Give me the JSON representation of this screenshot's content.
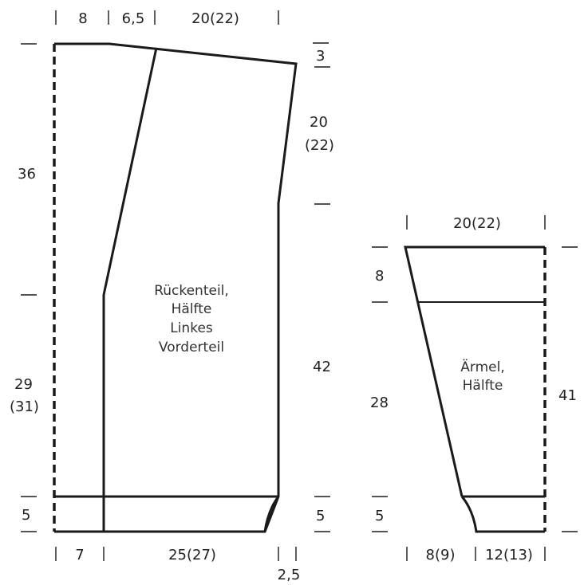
{
  "back_front": {
    "top_widths": [
      "8",
      "6,5",
      "20(22)"
    ],
    "shoulder_drop": "3",
    "armhole_depth": [
      "20",
      "(22)"
    ],
    "upper_height": "36",
    "side_height": [
      "29",
      "(31)"
    ],
    "body_height": "42",
    "hem_height_left": "5",
    "hem_height_right": "5",
    "bottom_widths": [
      "7",
      "25(27)",
      "2,5"
    ],
    "label_lines": [
      "Rückenteil,",
      "Hälfte",
      "Linkes",
      "Vorderteil"
    ]
  },
  "sleeve": {
    "top_width": "20(22)",
    "cuff_height_top": "8",
    "mid_height": "28",
    "total_height": "41",
    "cuff_height_bottom": "5",
    "bottom_widths": [
      "8(9)",
      "12(13)"
    ],
    "label_lines": [
      "Ärmel,",
      "Hälfte"
    ]
  }
}
